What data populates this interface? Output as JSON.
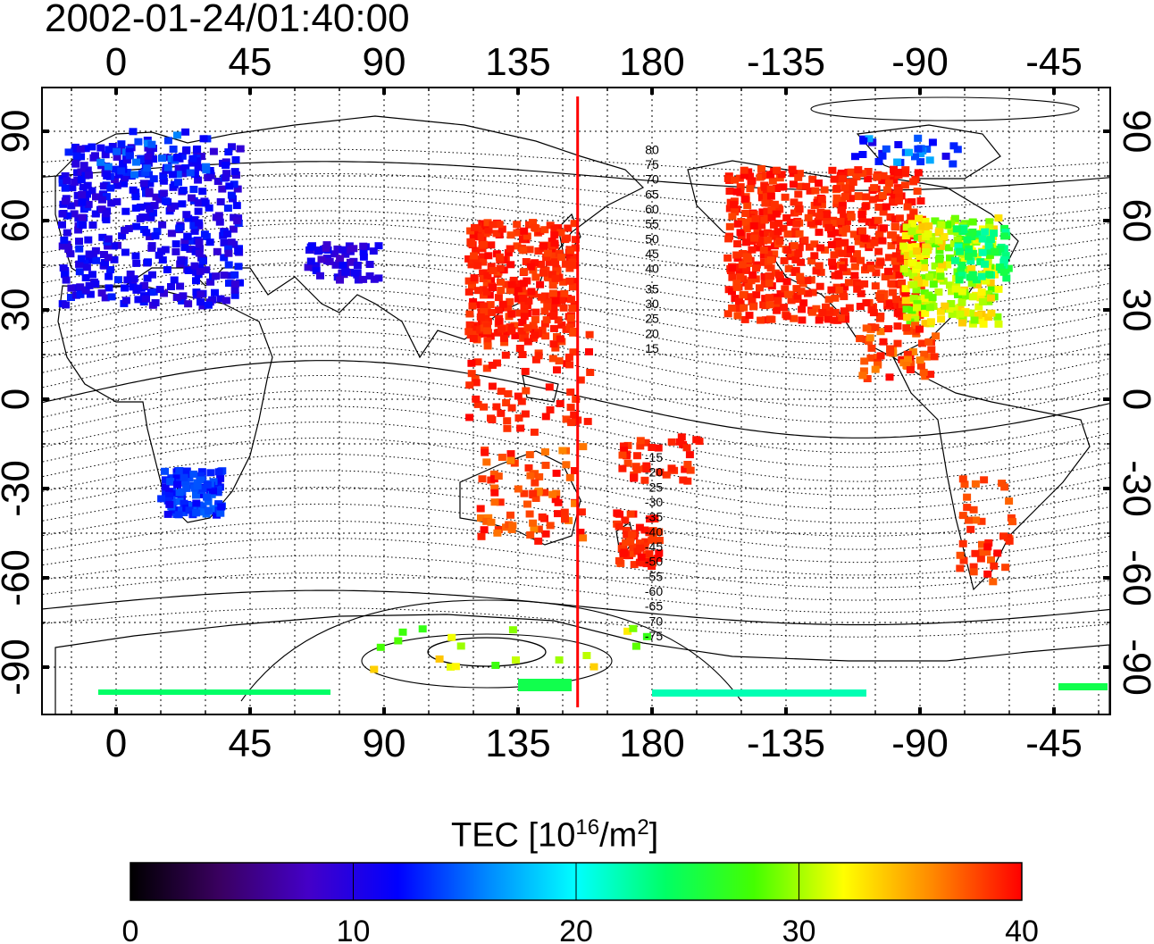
{
  "title": "2002-01-24/01:40:00",
  "longitude_ticks": [
    "0",
    "45",
    "90",
    "135",
    "180",
    "-135",
    "-90",
    "-45"
  ],
  "latitude_ticks": [
    "90",
    "60",
    "30",
    "0",
    "-30",
    "-60",
    "-90"
  ],
  "contour_labels_north": [
    "80",
    "75",
    "70",
    "65",
    "60",
    "55",
    "50",
    "45",
    "40",
    "35",
    "30",
    "25",
    "20",
    "15"
  ],
  "contour_labels_south": [
    "-15",
    "-20",
    "-25",
    "-30",
    "-35",
    "-40",
    "-45",
    "-50",
    "-55",
    "-60",
    "-65",
    "-70",
    "-75"
  ],
  "colorbar": {
    "label_prefix": "TEC  [10",
    "label_exp1": "16",
    "label_mid": "/m",
    "label_exp2": "2",
    "label_suffix": "]",
    "ticks": [
      "0",
      "10",
      "20",
      "30",
      "40"
    ],
    "range": [
      0,
      40
    ]
  },
  "marker_line_longitude": 155,
  "colors": {
    "marker_line": "#ff0000",
    "frame": "#000000",
    "grid": "#000000"
  }
}
